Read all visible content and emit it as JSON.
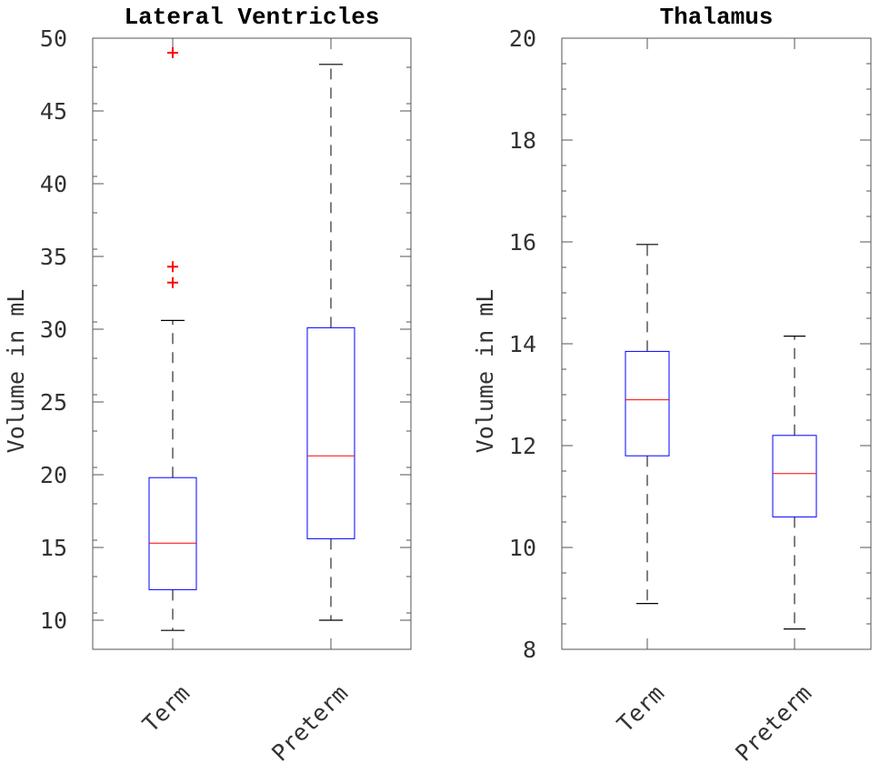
{
  "chart_data": [
    {
      "type": "box",
      "title": "Lateral Ventricles",
      "xlabel": "",
      "ylabel": "Volume in mL",
      "ylim": [
        8,
        50
      ],
      "yticks": [
        10,
        15,
        20,
        25,
        30,
        35,
        40,
        45,
        50
      ],
      "categories": [
        "Term",
        "Preterm"
      ],
      "boxes": [
        {
          "name": "Term",
          "whisker_low": 9.3,
          "q1": 12.1,
          "median": 15.3,
          "q3": 19.8,
          "whisker_high": 30.6,
          "outliers": [
            49.0,
            34.3,
            33.2
          ]
        },
        {
          "name": "Preterm",
          "whisker_low": 10.0,
          "q1": 15.6,
          "median": 21.3,
          "q3": 30.1,
          "whisker_high": 48.2,
          "outliers": []
        }
      ],
      "colors": {
        "box": "#0000ff",
        "median": "#ff0000",
        "whisker": "#000000",
        "outlier": "#ff0000"
      }
    },
    {
      "type": "box",
      "title": "Thalamus",
      "xlabel": "",
      "ylabel": "Volume in mL",
      "ylim": [
        8,
        20
      ],
      "yticks": [
        8,
        10,
        12,
        14,
        16,
        18,
        20
      ],
      "categories": [
        "Term",
        "Preterm"
      ],
      "boxes": [
        {
          "name": "Term",
          "whisker_low": 8.9,
          "q1": 11.8,
          "median": 12.9,
          "q3": 13.85,
          "whisker_high": 15.95,
          "outliers": []
        },
        {
          "name": "Preterm",
          "whisker_low": 8.4,
          "q1": 10.6,
          "median": 11.45,
          "q3": 12.2,
          "whisker_high": 14.15,
          "outliers": []
        }
      ],
      "colors": {
        "box": "#0000ff",
        "median": "#ff0000",
        "whisker": "#000000",
        "outlier": "#ff0000"
      }
    }
  ]
}
